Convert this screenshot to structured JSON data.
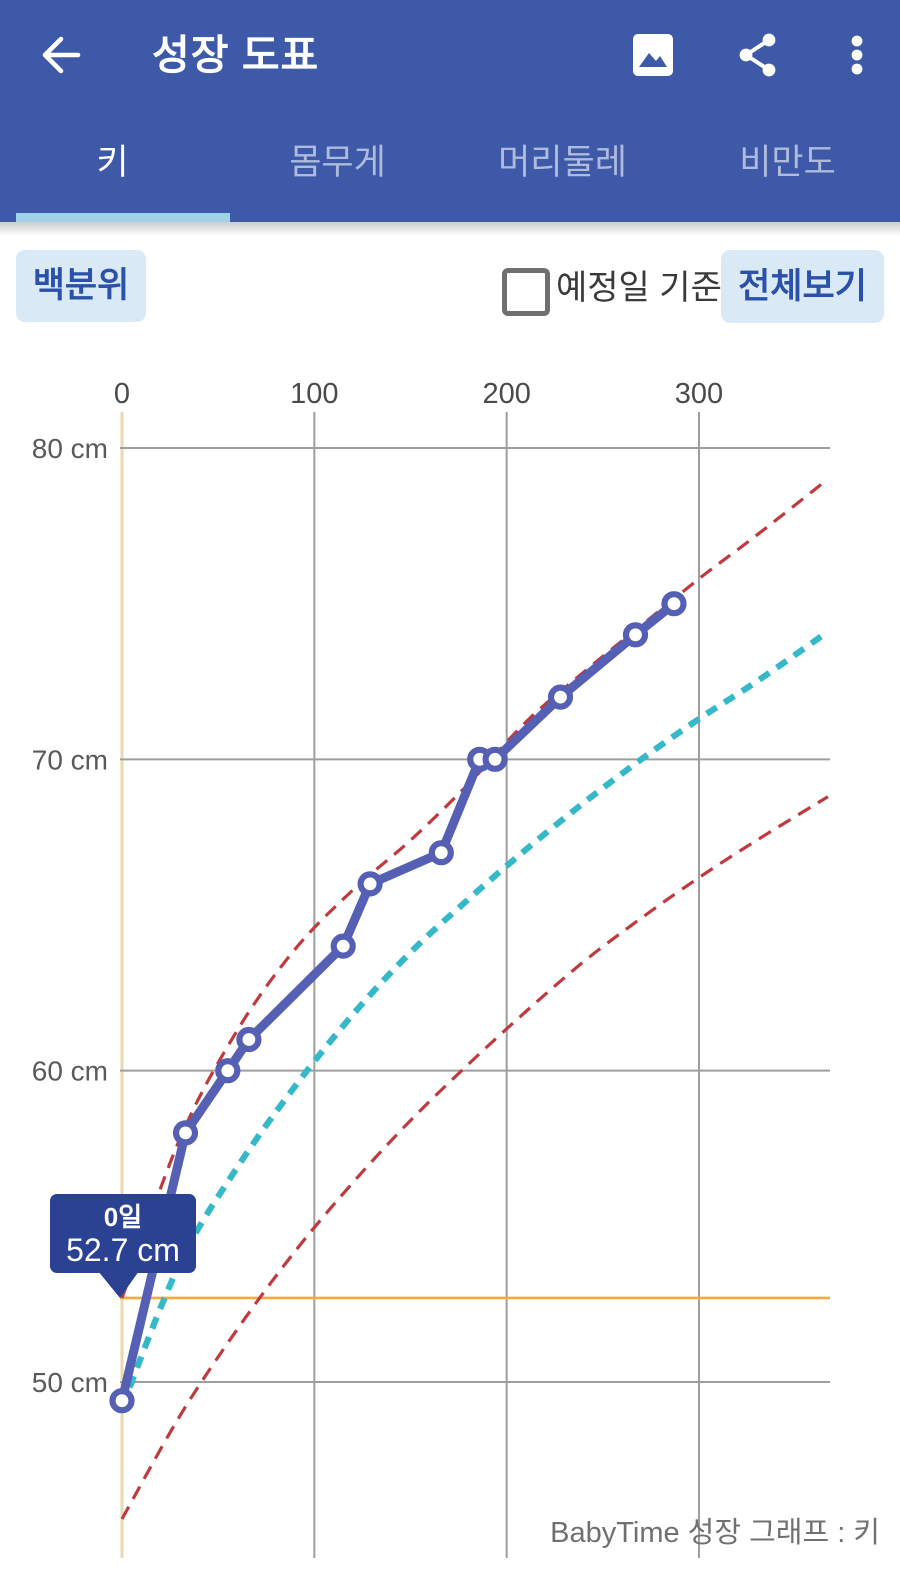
{
  "app_bar": {
    "title": "성장 도표"
  },
  "tabs": [
    {
      "label": "키",
      "active": true
    },
    {
      "label": "몸무게",
      "active": false
    },
    {
      "label": "머리둘레",
      "active": false
    },
    {
      "label": "비만도",
      "active": false
    }
  ],
  "controls": {
    "percentile_button": "백분위",
    "due_date_checkbox_label": "예정일 기준",
    "due_date_checked": false,
    "view_all_button": "전체보기"
  },
  "colors": {
    "app_bar_bg": "#3D59A8",
    "tab_indicator": "#9FD2E4",
    "button_bg": "#D9E9F6",
    "button_text": "#2B51A8",
    "grid": "#9E9E9E",
    "axis_line": "#E9D9B0",
    "highlight_line": "#F3AA45",
    "series_main": "#5560B4",
    "series_percentile_outer": "#BE3A3E",
    "series_percentile_median": "#35B8C8",
    "tooltip_bg": "#2B4293"
  },
  "chart_data": {
    "type": "line",
    "x_axis": {
      "position": "top",
      "unit": "days(일)",
      "tick_values": [
        0,
        100,
        200,
        300
      ],
      "tick_labels": [
        "0",
        "100",
        "200",
        "300"
      ],
      "range": [
        0,
        367
      ]
    },
    "y_axis": {
      "unit": "cm",
      "tick_values": [
        80,
        70,
        60,
        50
      ],
      "tick_labels": [
        "80 cm",
        "70 cm",
        "60 cm",
        "50 cm"
      ],
      "range": [
        43.7,
        81.8
      ]
    },
    "grid": true,
    "legend": "none",
    "series": [
      {
        "name": "measured-height",
        "style": "solid-with-markers",
        "color": "#5560B4",
        "points": [
          [
            0,
            49.4
          ],
          [
            33,
            58.0
          ],
          [
            55,
            60.0
          ],
          [
            66,
            61.0
          ],
          [
            115,
            64.0
          ],
          [
            129,
            66.0
          ],
          [
            166,
            67.0
          ],
          [
            186,
            70.0
          ],
          [
            194,
            70.0
          ],
          [
            228,
            72.0
          ],
          [
            267,
            74.0
          ],
          [
            287,
            75.0
          ]
        ]
      },
      {
        "name": "percentile-97",
        "style": "dashed",
        "color": "#BE3A3E",
        "points": [
          [
            0,
            52.7
          ],
          [
            30,
            57.8
          ],
          [
            60,
            61.3
          ],
          [
            90,
            63.9
          ],
          [
            120,
            65.8
          ],
          [
            150,
            67.4
          ],
          [
            180,
            69.2
          ],
          [
            210,
            71.2
          ],
          [
            240,
            72.8
          ],
          [
            270,
            74.3
          ],
          [
            300,
            75.8
          ],
          [
            330,
            77.2
          ],
          [
            367,
            79.0
          ]
        ]
      },
      {
        "name": "percentile-50",
        "style": "dashed-bold",
        "color": "#35B8C8",
        "points": [
          [
            0,
            49.2
          ],
          [
            30,
            53.8
          ],
          [
            60,
            56.9
          ],
          [
            90,
            59.5
          ],
          [
            120,
            61.8
          ],
          [
            150,
            63.8
          ],
          [
            180,
            65.5
          ],
          [
            210,
            67.1
          ],
          [
            240,
            68.6
          ],
          [
            270,
            70.0
          ],
          [
            300,
            71.3
          ],
          [
            330,
            72.5
          ],
          [
            367,
            74.1
          ]
        ]
      },
      {
        "name": "percentile-3",
        "style": "dashed",
        "color": "#BE3A3E",
        "points": [
          [
            0,
            45.6
          ],
          [
            30,
            48.9
          ],
          [
            60,
            51.7
          ],
          [
            90,
            54.2
          ],
          [
            120,
            56.4
          ],
          [
            150,
            58.4
          ],
          [
            180,
            60.2
          ],
          [
            210,
            61.9
          ],
          [
            240,
            63.5
          ],
          [
            270,
            64.9
          ],
          [
            300,
            66.2
          ],
          [
            330,
            67.4
          ],
          [
            367,
            68.8
          ]
        ]
      }
    ],
    "tooltip": {
      "title": "0일",
      "value": "52.7 cm",
      "anchor_day": 0,
      "anchor_cm": 52.7
    },
    "highlight": {
      "cm": 52.7
    },
    "footer": "BabyTime 성장 그래프 : 키"
  }
}
